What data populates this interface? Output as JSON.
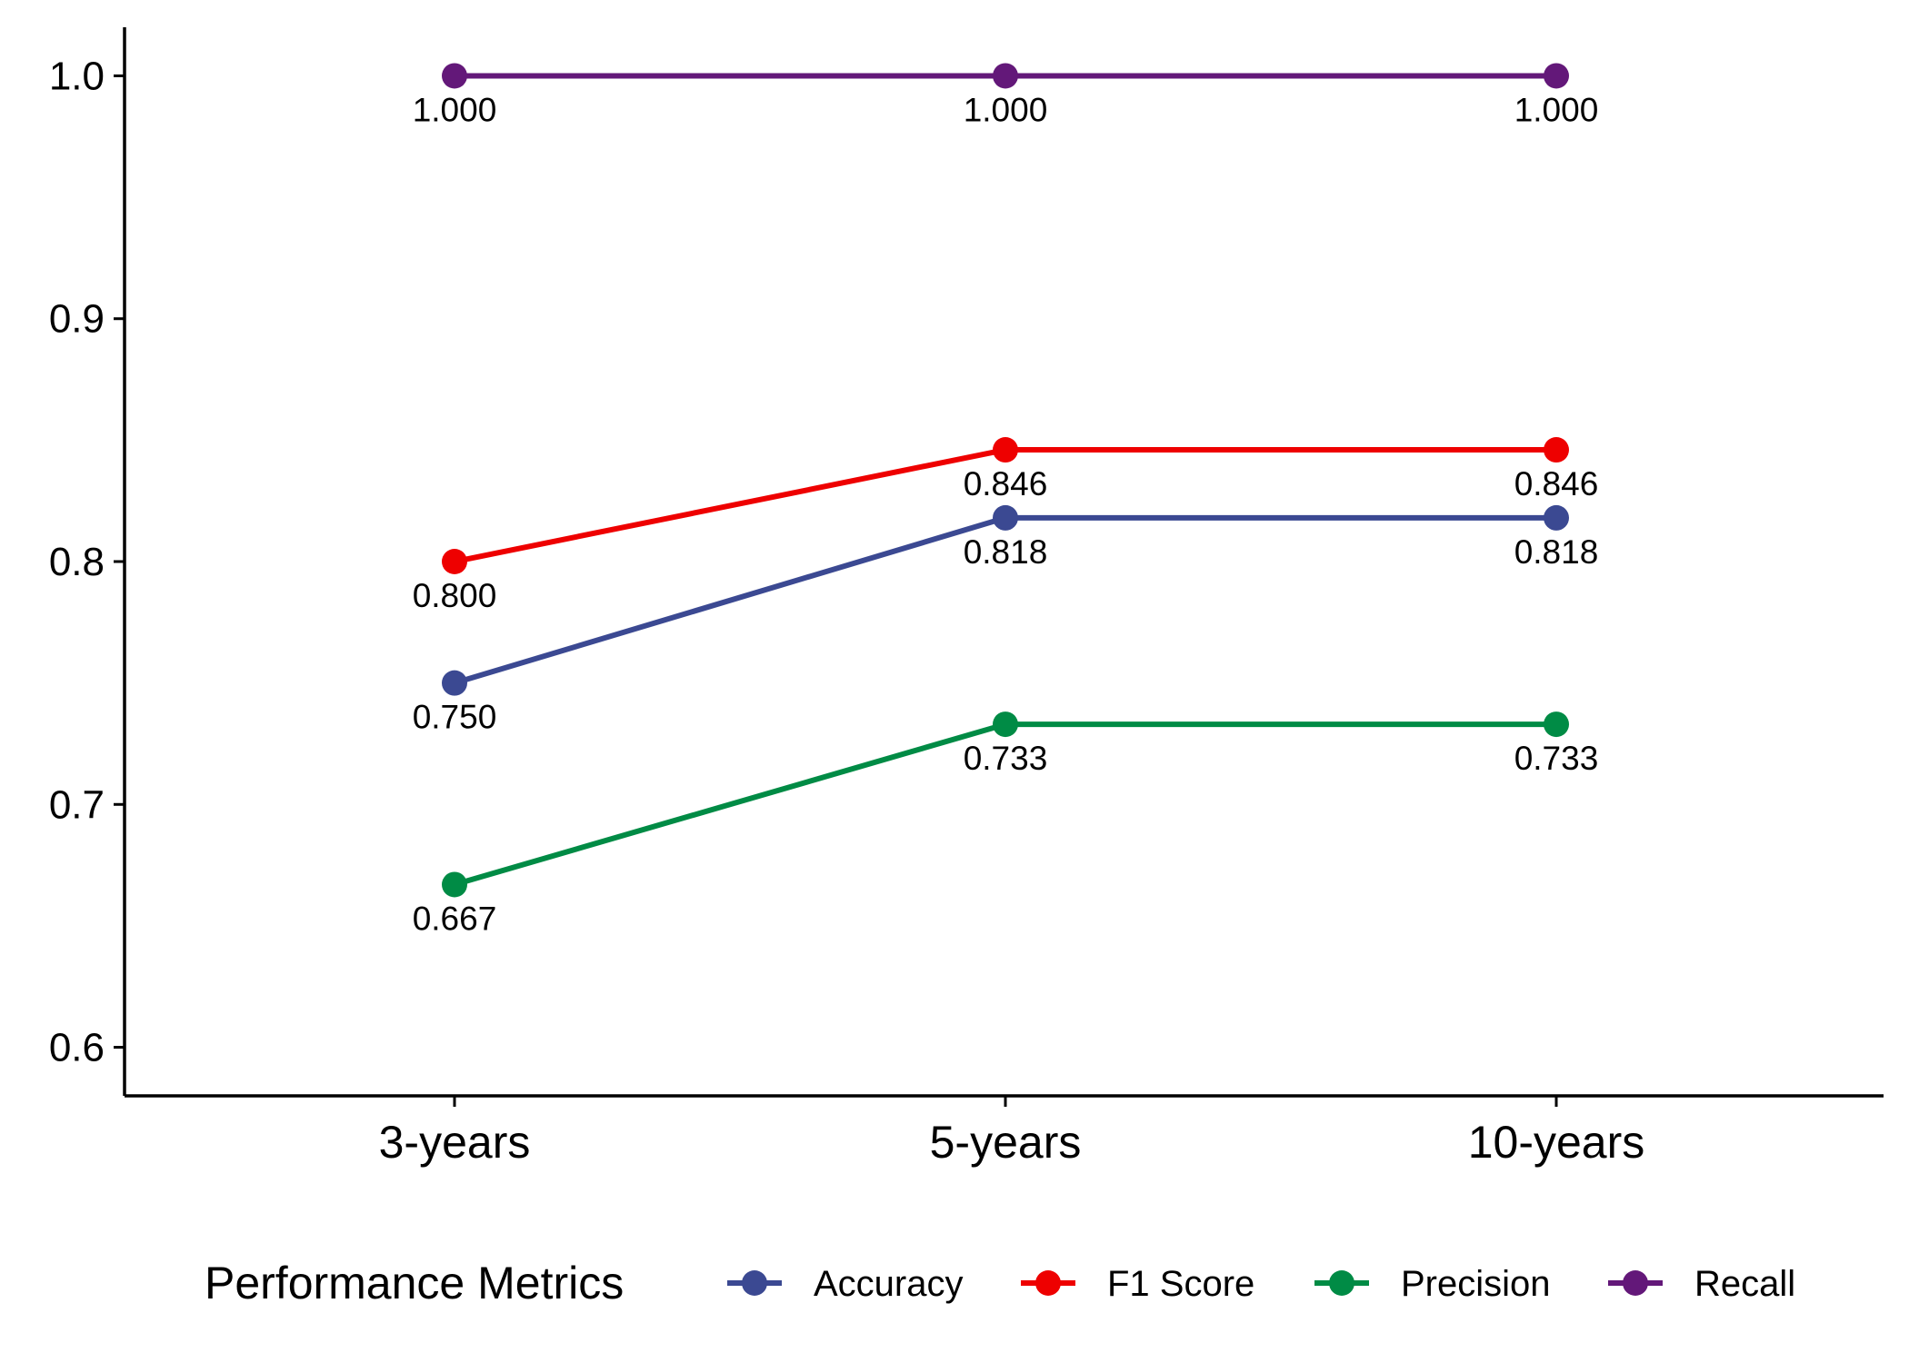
{
  "chart_data": {
    "type": "line",
    "title": "",
    "xlabel": "",
    "ylabel": "",
    "categories": [
      "3-years",
      "5-years",
      "10-years"
    ],
    "ylim": [
      0.58,
      1.02
    ],
    "yticks": [
      0.6,
      0.7,
      0.8,
      0.9,
      1.0
    ],
    "ytick_labels": [
      "0.6",
      "0.7",
      "0.8",
      "0.9",
      "1.0"
    ],
    "grid": false,
    "legend": {
      "title": "Performance Metrics",
      "placement": "bottom"
    },
    "series": [
      {
        "name": "Accuracy",
        "color": "#3B4992",
        "values": [
          0.75,
          0.818,
          0.818
        ],
        "labels": [
          "0.750",
          "0.818",
          "0.818"
        ]
      },
      {
        "name": "F1 Score",
        "color": "#EE0000",
        "values": [
          0.8,
          0.846,
          0.846
        ],
        "labels": [
          "0.800",
          "0.846",
          "0.846"
        ]
      },
      {
        "name": "Precision",
        "color": "#008B45",
        "values": [
          0.667,
          0.733,
          0.733
        ],
        "labels": [
          "0.667",
          "0.733",
          "0.733"
        ]
      },
      {
        "name": "Recall",
        "color": "#631879",
        "values": [
          1.0,
          1.0,
          1.0
        ],
        "labels": [
          "1.000",
          "1.000",
          "1.000"
        ]
      }
    ]
  }
}
